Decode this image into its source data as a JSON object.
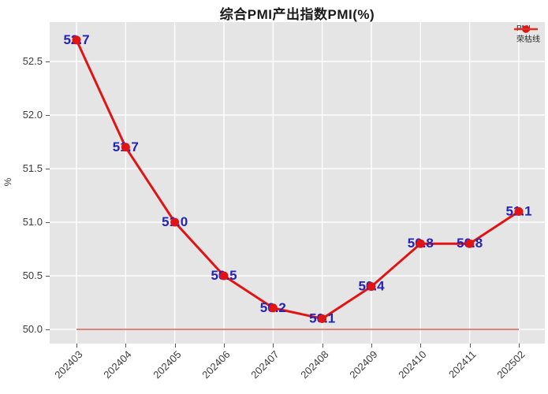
{
  "colors": {
    "series_red": "#e01414",
    "baseline_red": "#cf4335",
    "label_blue": "#2323b4",
    "plot_bg": "#e5e5e5",
    "grid_white": "#ffffff",
    "tick_text": "#3c3c3c",
    "title_text": "#1a1a1a"
  },
  "chart_data": {
    "type": "line",
    "title": "综合PMI产出指数PMI(%)",
    "ylabel": "%",
    "xlabel": "",
    "categories": [
      "202403",
      "202404",
      "202405",
      "202406",
      "202407",
      "202408",
      "202409",
      "202410",
      "202411",
      "202502"
    ],
    "series": [
      {
        "name": "PMI",
        "values": [
          52.7,
          51.7,
          51.0,
          50.5,
          50.2,
          50.1,
          50.4,
          50.8,
          50.8,
          51.1
        ],
        "color": "#e01414",
        "marker": "circle",
        "point_labels": [
          "52.7",
          "51.7",
          "51.0",
          "50.5",
          "50.2",
          "50.1",
          "50.4",
          "50.8",
          "50.8",
          "51.1"
        ]
      }
    ],
    "baseline": {
      "name": "荣枯线",
      "value": 50.0
    },
    "yticks": [
      50.0,
      50.5,
      51.0,
      51.5,
      52.0,
      52.5
    ],
    "ylim": [
      49.87,
      52.87
    ],
    "grid": true,
    "legend_position": "upper right",
    "plot_background": "#e5e5e5"
  }
}
